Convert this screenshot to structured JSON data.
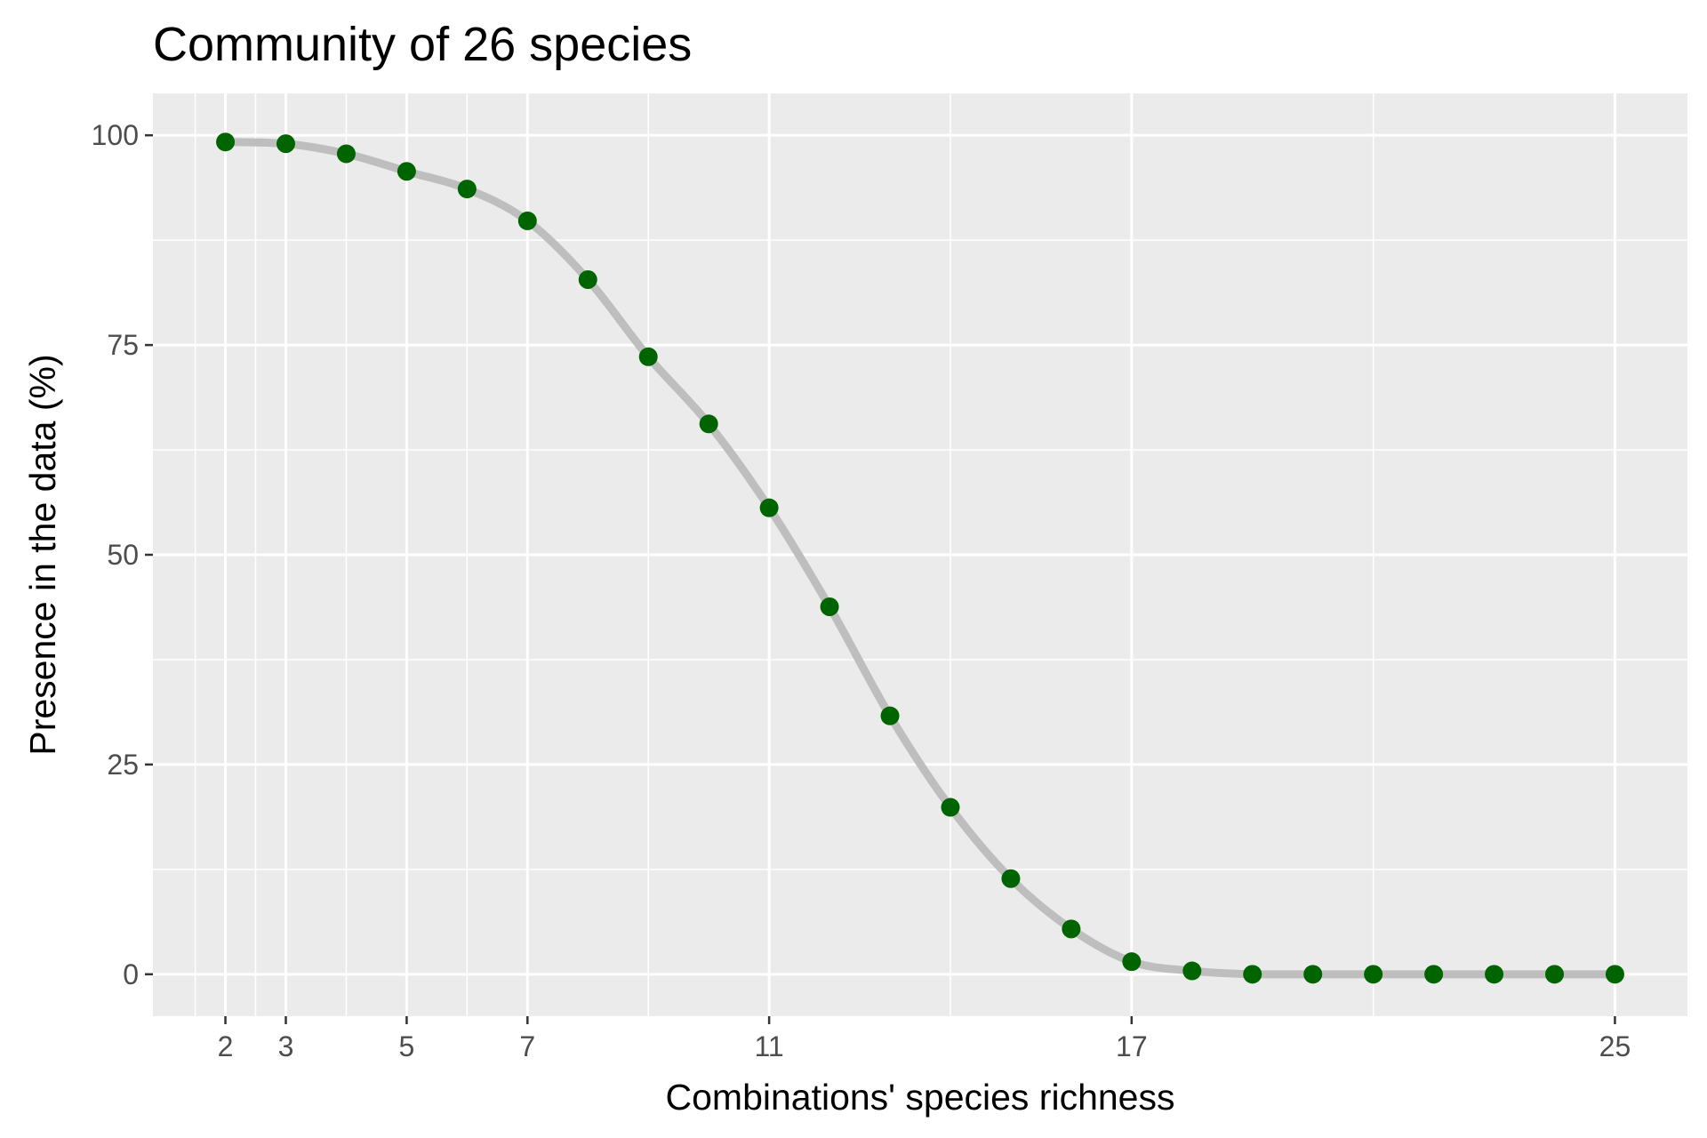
{
  "chart_data": {
    "type": "line",
    "title": "Community of 26 species",
    "xlabel": "Combinations' species richness",
    "ylabel": "Presence in the data (%)",
    "x_ticks": [
      2,
      3,
      5,
      7,
      11,
      17,
      25
    ],
    "y_ticks": [
      0,
      25,
      50,
      75,
      100
    ],
    "xlim": [
      0.8,
      26.2
    ],
    "ylim": [
      -5,
      105
    ],
    "grid": true,
    "colors": {
      "panel_background": "#ebebeb",
      "grid_line": "#ffffff",
      "line": "#bebebe",
      "point": "#006400"
    },
    "series": [
      {
        "x": [
          2,
          3,
          4,
          5,
          6,
          7,
          8,
          9,
          10,
          11,
          12,
          13,
          14,
          15,
          16,
          17,
          18,
          19,
          20,
          21,
          22,
          23,
          24,
          25
        ],
        "y": [
          99.2,
          99.0,
          97.8,
          95.7,
          93.6,
          89.8,
          82.8,
          73.6,
          65.6,
          55.6,
          43.8,
          30.8,
          19.9,
          11.4,
          5.4,
          1.5,
          0.4,
          0.0,
          0.0,
          0.0,
          0.0,
          0.0,
          0.0,
          0.0
        ]
      }
    ]
  }
}
